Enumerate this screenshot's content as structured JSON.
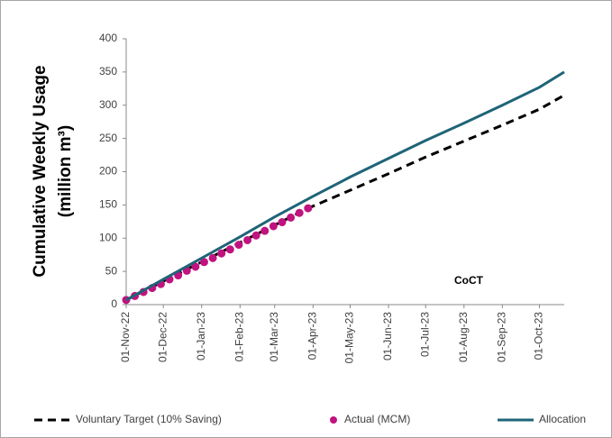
{
  "chart_data": {
    "type": "line",
    "y_label": [
      "Cumulative Weekly Usage",
      "(million m³)"
    ],
    "annotation": "CoCT",
    "xlim": [
      "2022-11-01",
      "2023-10-21"
    ],
    "xticks": [
      {
        "value": "2022-11-01",
        "label": "01-Nov-22"
      },
      {
        "value": "2022-12-01",
        "label": "01-Dec-22"
      },
      {
        "value": "2023-01-01",
        "label": "01-Jan-23"
      },
      {
        "value": "2023-02-01",
        "label": "01-Feb-23"
      },
      {
        "value": "2023-03-01",
        "label": "01-Mar-23"
      },
      {
        "value": "2023-04-01",
        "label": "01-Apr-23"
      },
      {
        "value": "2023-05-01",
        "label": "01-May-23"
      },
      {
        "value": "2023-06-01",
        "label": "01-Jun-23"
      },
      {
        "value": "2023-07-01",
        "label": "01-Jul-23"
      },
      {
        "value": "2023-08-01",
        "label": "01-Aug-23"
      },
      {
        "value": "2023-09-01",
        "label": "01-Sep-23"
      },
      {
        "value": "2023-10-01",
        "label": "01-Oct-23"
      }
    ],
    "ylim": [
      0,
      400
    ],
    "yticks": [
      0,
      50,
      100,
      150,
      200,
      250,
      300,
      350,
      400
    ],
    "series": [
      {
        "name": "Voluntary Target (10% Saving)",
        "style": "dashed",
        "color": "#000000",
        "x": [
          "2022-11-01",
          "2023-03-28",
          "2023-05-01",
          "2023-06-01",
          "2023-07-01",
          "2023-08-01",
          "2023-09-01",
          "2023-10-01",
          "2023-10-21"
        ],
        "values": [
          7,
          145,
          172,
          197,
          222,
          246,
          270,
          294,
          315
        ]
      },
      {
        "name": "Actual (MCM)",
        "style": "dots",
        "color": "#c0137f",
        "x": [
          "2022-11-01",
          "2022-11-08",
          "2022-11-15",
          "2022-11-22",
          "2022-11-29",
          "2022-12-06",
          "2022-12-13",
          "2022-12-20",
          "2022-12-27",
          "2023-01-03",
          "2023-01-10",
          "2023-01-17",
          "2023-01-24",
          "2023-01-31",
          "2023-02-07",
          "2023-02-14",
          "2023-02-21",
          "2023-02-28",
          "2023-03-07",
          "2023-03-14",
          "2023-03-21",
          "2023-03-28"
        ],
        "values": [
          7,
          13,
          19,
          25,
          31,
          38,
          44,
          51,
          57,
          64,
          70,
          77,
          83,
          90,
          97,
          104,
          111,
          118,
          124,
          131,
          138,
          145
        ]
      },
      {
        "name": "Allocation",
        "style": "solid",
        "color": "#1f6478",
        "x": [
          "2022-11-01",
          "2022-12-01",
          "2023-01-01",
          "2023-02-01",
          "2023-03-01",
          "2023-04-01",
          "2023-05-01",
          "2023-06-01",
          "2023-07-01",
          "2023-08-01",
          "2023-09-01",
          "2023-10-01",
          "2023-10-21"
        ],
        "values": [
          7,
          38,
          70,
          102,
          132,
          163,
          192,
          220,
          247,
          273,
          300,
          327,
          350
        ]
      }
    ]
  }
}
